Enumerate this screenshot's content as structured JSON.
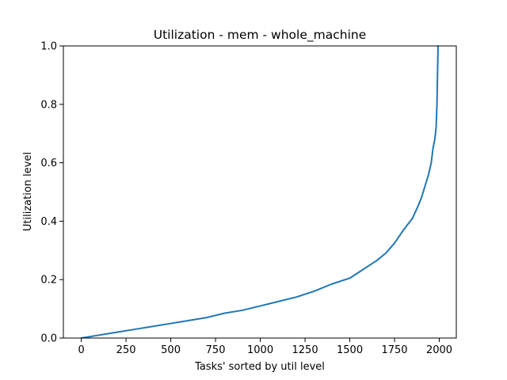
{
  "chart_data": {
    "type": "line",
    "title": "Utilization - mem - whole_machine",
    "xlabel": "Tasks' sorted by util level",
    "ylabel": "Utilization level",
    "xlim": [
      -100,
      2095
    ],
    "ylim": [
      0.0,
      1.0
    ],
    "x_ticks": [
      0,
      250,
      500,
      750,
      1000,
      1250,
      1500,
      1750,
      2000
    ],
    "y_ticks": [
      0.0,
      0.2,
      0.4,
      0.6,
      0.8,
      1.0
    ],
    "x_tick_labels": [
      "0",
      "250",
      "500",
      "750",
      "1000",
      "1250",
      "1500",
      "1750",
      "2000"
    ],
    "y_tick_labels": [
      "0.0",
      "0.2",
      "0.4",
      "0.6",
      "0.8",
      "1.0"
    ],
    "grid": false,
    "series": [
      {
        "color": "#1f77b4",
        "x": [
          0,
          100,
          200,
          300,
          400,
          500,
          600,
          700,
          800,
          900,
          1000,
          1100,
          1200,
          1300,
          1400,
          1500,
          1550,
          1600,
          1650,
          1700,
          1750,
          1800,
          1850,
          1880,
          1900,
          1920,
          1940,
          1955,
          1965,
          1975,
          1982,
          1987,
          1990,
          1993,
          1995
        ],
        "y": [
          0.0,
          0.01,
          0.02,
          0.03,
          0.04,
          0.05,
          0.06,
          0.07,
          0.085,
          0.095,
          0.11,
          0.125,
          0.14,
          0.16,
          0.185,
          0.205,
          0.225,
          0.245,
          0.265,
          0.29,
          0.325,
          0.37,
          0.41,
          0.45,
          0.48,
          0.52,
          0.56,
          0.6,
          0.65,
          0.68,
          0.72,
          0.8,
          0.9,
          1.0,
          1.0
        ]
      }
    ]
  }
}
